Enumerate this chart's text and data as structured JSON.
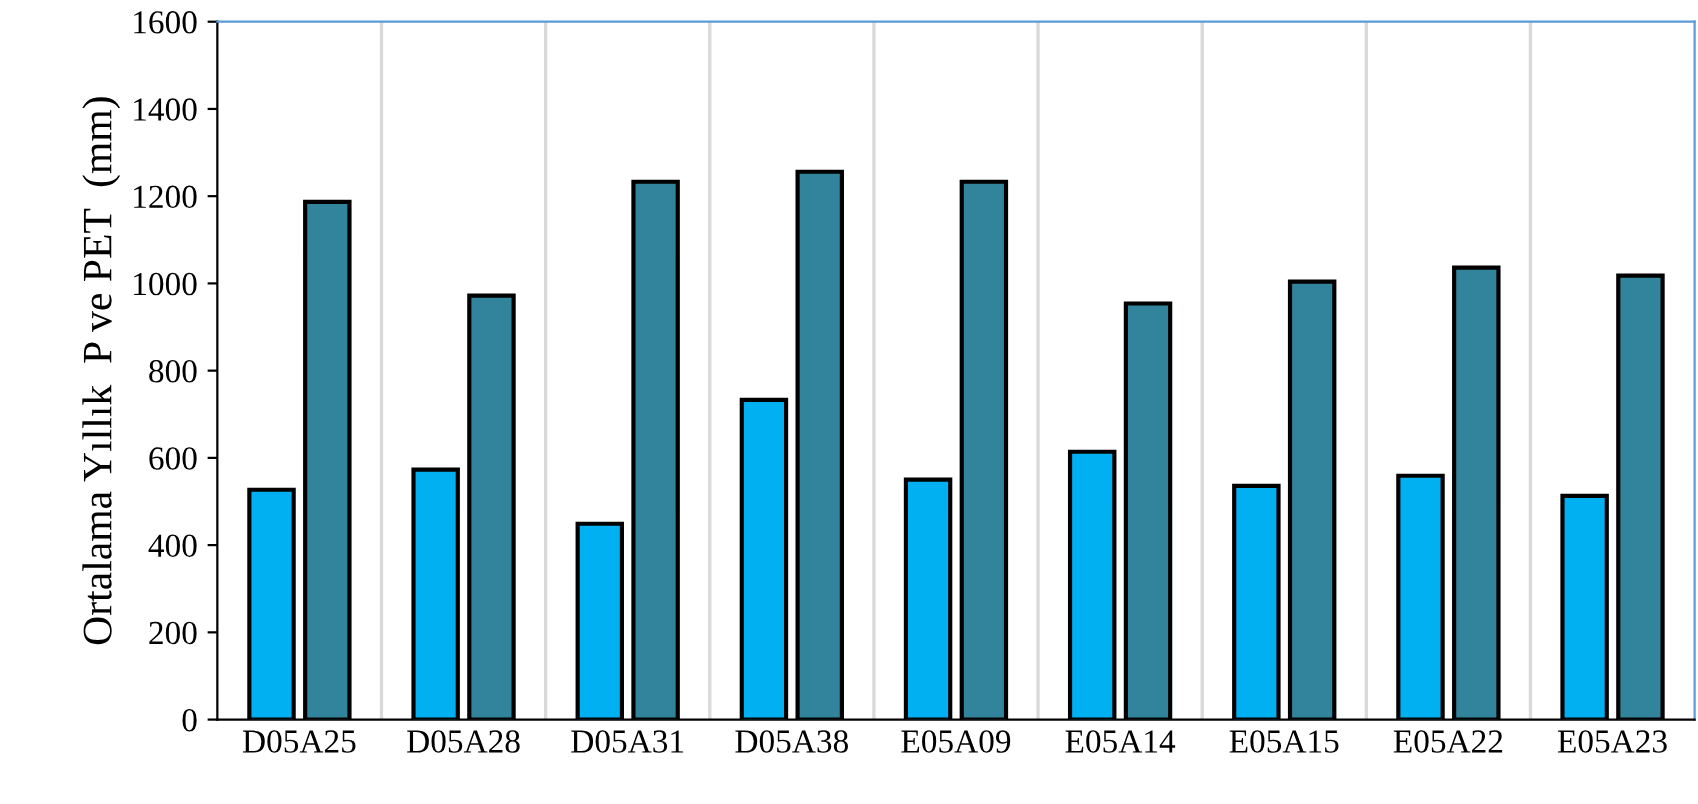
{
  "chart_data": {
    "type": "bar",
    "ylabel": "Ortalama Yıllık  P ve PET  (mm)",
    "categories": [
      "D05A25",
      "D05A28",
      "D05A31",
      "D05A38",
      "E05A09",
      "E05A14",
      "E05A15",
      "E05A22",
      "E05A23"
    ],
    "series": [
      {
        "color": "#00b0f0",
        "values": [
          527,
          573,
          449,
          733,
          550,
          614,
          536,
          559,
          513
        ]
      },
      {
        "color": "#31849b",
        "values": [
          1187,
          972,
          1233,
          1256,
          1233,
          954,
          1004,
          1036,
          1018
        ]
      }
    ],
    "ylim": [
      0,
      1600
    ],
    "yticks": [
      0,
      200,
      400,
      600,
      800,
      1000,
      1200,
      1400,
      1600
    ],
    "grid": "x",
    "legend": false
  }
}
